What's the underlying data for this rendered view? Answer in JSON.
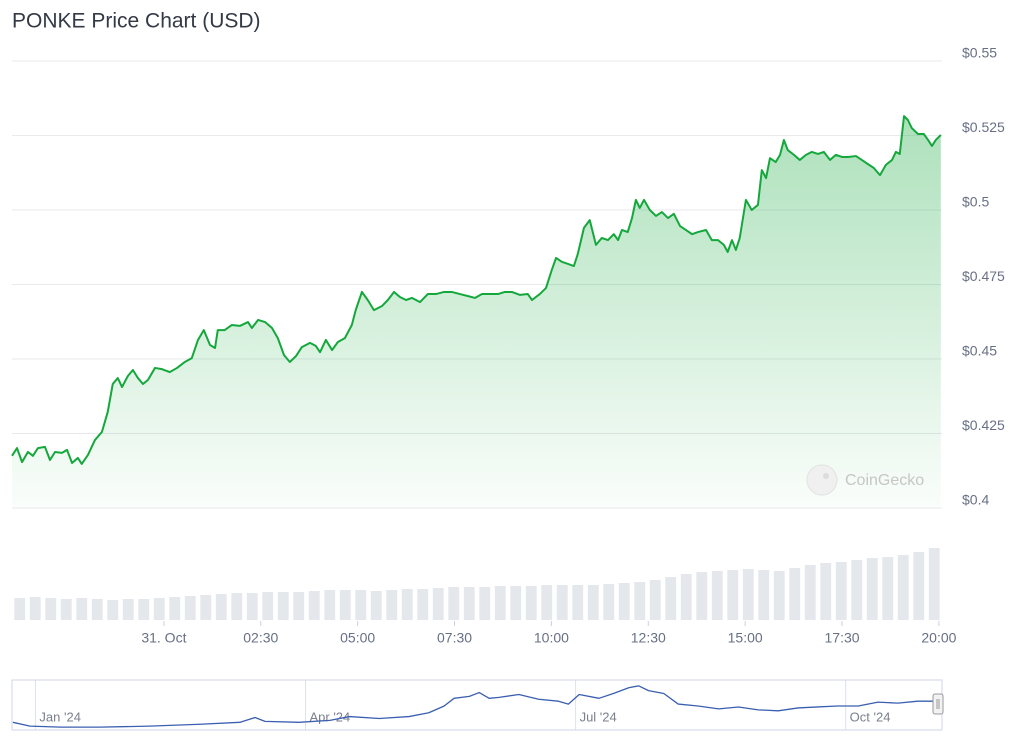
{
  "title": "PONKE Price Chart (USD)",
  "watermark": "CoinGecko",
  "chart_data": [
    {
      "type": "line",
      "area": true,
      "color": "#14a83c",
      "grid": true,
      "xlim": [
        -3.92,
        20.08
      ],
      "ylim": [
        0.4,
        0.55
      ],
      "xticks": [
        {
          "value": 0,
          "label": "31. Oct"
        },
        {
          "value": 2.5,
          "label": "02:30"
        },
        {
          "value": 5,
          "label": "05:00"
        },
        {
          "value": 7.5,
          "label": "07:30"
        },
        {
          "value": 10,
          "label": "10:00"
        },
        {
          "value": 12.5,
          "label": "12:30"
        },
        {
          "value": 15,
          "label": "15:00"
        },
        {
          "value": 17.5,
          "label": "17:30"
        },
        {
          "value": 20,
          "label": "20:00"
        }
      ],
      "yticks": [
        {
          "value": 0.4,
          "label": "$0.4"
        },
        {
          "value": 0.425,
          "label": "$0.425"
        },
        {
          "value": 0.45,
          "label": "$0.45"
        },
        {
          "value": 0.475,
          "label": "$0.475"
        },
        {
          "value": 0.5,
          "label": "$0.5"
        },
        {
          "value": 0.525,
          "label": "$0.525"
        },
        {
          "value": 0.55,
          "label": "$0.55"
        }
      ],
      "x": [
        -3.92,
        -3.79,
        -3.66,
        -3.51,
        -3.38,
        -3.25,
        -3.07,
        -2.94,
        -2.81,
        -2.63,
        -2.5,
        -2.37,
        -2.22,
        -2.12,
        -1.96,
        -1.78,
        -1.6,
        -1.45,
        -1.32,
        -1.19,
        -1.08,
        -0.93,
        -0.8,
        -0.67,
        -0.54,
        -0.41,
        -0.23,
        -0.05,
        0.15,
        0.34,
        0.54,
        0.72,
        0.88,
        1.03,
        1.19,
        1.32,
        1.39,
        1.57,
        1.75,
        1.96,
        2.17,
        2.27,
        2.43,
        2.61,
        2.79,
        2.94,
        3.1,
        3.25,
        3.41,
        3.56,
        3.77,
        3.92,
        4.03,
        4.18,
        4.34,
        4.49,
        4.67,
        4.85,
        4.95,
        5.11,
        5.26,
        5.42,
        5.63,
        5.78,
        5.94,
        6.09,
        6.25,
        6.4,
        6.61,
        6.81,
        7.02,
        7.23,
        7.43,
        7.64,
        7.85,
        8.03,
        8.21,
        8.41,
        8.62,
        8.8,
        8.98,
        9.19,
        9.39,
        9.5,
        9.7,
        9.86,
        10.01,
        10.12,
        10.27,
        10.43,
        10.58,
        10.68,
        10.84,
        10.99,
        11.15,
        11.3,
        11.46,
        11.61,
        11.72,
        11.82,
        11.97,
        12.08,
        12.18,
        12.28,
        12.39,
        12.54,
        12.7,
        12.85,
        13.01,
        13.16,
        13.32,
        13.47,
        13.63,
        13.78,
        13.99,
        14.14,
        14.3,
        14.45,
        14.55,
        14.66,
        14.76,
        14.86,
        15.02,
        15.17,
        15.33,
        15.43,
        15.54,
        15.64,
        15.79,
        15.9,
        16.0,
        16.1,
        16.26,
        16.41,
        16.57,
        16.72,
        16.88,
        17.03,
        17.19,
        17.34,
        17.5,
        17.65,
        17.86,
        18.01,
        18.17,
        18.32,
        18.48,
        18.63,
        18.79,
        18.89,
        18.99,
        19.1,
        19.2,
        19.3,
        19.46,
        19.61,
        19.72,
        19.82,
        19.92,
        20.05
      ],
      "values": [
        0.4175,
        0.4201,
        0.4154,
        0.4188,
        0.4175,
        0.4201,
        0.4205,
        0.4161,
        0.4188,
        0.4185,
        0.4195,
        0.4151,
        0.4168,
        0.4148,
        0.4178,
        0.4228,
        0.4255,
        0.4322,
        0.4416,
        0.4436,
        0.4406,
        0.4443,
        0.4463,
        0.4436,
        0.4416,
        0.443,
        0.447,
        0.4466,
        0.4456,
        0.447,
        0.449,
        0.4503,
        0.4564,
        0.4597,
        0.4547,
        0.4537,
        0.4597,
        0.4597,
        0.4614,
        0.4611,
        0.4624,
        0.4604,
        0.4631,
        0.4624,
        0.4604,
        0.457,
        0.4513,
        0.449,
        0.451,
        0.454,
        0.4554,
        0.4544,
        0.4523,
        0.4564,
        0.453,
        0.4557,
        0.457,
        0.4614,
        0.4664,
        0.4725,
        0.4698,
        0.4664,
        0.4678,
        0.4698,
        0.4725,
        0.4708,
        0.4698,
        0.4705,
        0.4691,
        0.4718,
        0.4718,
        0.4725,
        0.4725,
        0.4718,
        0.4711,
        0.4705,
        0.4718,
        0.4718,
        0.4718,
        0.4725,
        0.4725,
        0.4715,
        0.4718,
        0.4698,
        0.4718,
        0.4738,
        0.4799,
        0.4839,
        0.4826,
        0.4819,
        0.4812,
        0.4852,
        0.494,
        0.4966,
        0.4883,
        0.4906,
        0.4899,
        0.4919,
        0.4899,
        0.4933,
        0.4926,
        0.4973,
        0.5034,
        0.5007,
        0.5034,
        0.5,
        0.498,
        0.4993,
        0.4973,
        0.4987,
        0.4946,
        0.4933,
        0.4919,
        0.4926,
        0.4933,
        0.4899,
        0.4899,
        0.4883,
        0.4859,
        0.4899,
        0.4866,
        0.4906,
        0.5034,
        0.5,
        0.5017,
        0.5134,
        0.5107,
        0.5174,
        0.5161,
        0.5185,
        0.5235,
        0.5201,
        0.5185,
        0.5168,
        0.5185,
        0.5195,
        0.5188,
        0.5195,
        0.5168,
        0.5185,
        0.5178,
        0.5178,
        0.5181,
        0.5168,
        0.5154,
        0.5141,
        0.5117,
        0.5151,
        0.5168,
        0.5195,
        0.5188,
        0.5315,
        0.5302,
        0.5275,
        0.5255,
        0.5255,
        0.5235,
        0.5215,
        0.5235,
        0.5252
      ]
    },
    {
      "type": "bar",
      "color": "#e4e7eb",
      "ylim": [
        0,
        100
      ],
      "values": [
        22,
        23,
        22,
        21,
        22,
        21,
        20,
        21,
        21,
        22,
        23,
        24,
        25,
        26,
        27,
        27,
        28,
        28,
        28,
        29,
        30,
        30,
        30,
        29,
        30,
        31,
        31,
        32,
        33,
        33,
        33,
        34,
        34,
        34,
        35,
        35,
        35,
        35,
        36,
        37,
        38,
        40,
        43,
        46,
        48,
        49,
        50,
        51,
        50,
        49,
        52,
        55,
        57,
        58,
        60,
        62,
        63,
        65,
        68,
        72
      ]
    },
    {
      "type": "line",
      "color": "#3a5fb0",
      "xlim": [
        -0.26,
        10.07
      ],
      "ylim": [
        0,
        50
      ],
      "xticks": [
        {
          "value": 0,
          "label": "Jan '24"
        },
        {
          "value": 3,
          "label": "Apr '24"
        },
        {
          "value": 6,
          "label": "Jul '24"
        },
        {
          "value": 9,
          "label": "Oct '24"
        }
      ],
      "x": [
        -0.25,
        -0.06,
        0.28,
        0.72,
        1.27,
        1.83,
        2.27,
        2.44,
        2.55,
        2.93,
        3.27,
        3.49,
        3.82,
        4.15,
        4.37,
        4.54,
        4.65,
        4.82,
        4.93,
        5.04,
        5.15,
        5.37,
        5.59,
        5.81,
        5.92,
        6.04,
        6.26,
        6.42,
        6.59,
        6.7,
        6.81,
        6.98,
        7.14,
        7.36,
        7.59,
        7.81,
        8.03,
        8.25,
        8.47,
        8.69,
        8.91,
        9.14,
        9.36,
        9.58,
        9.8,
        10.02
      ],
      "values": [
        8,
        4,
        3,
        3,
        4,
        6,
        8,
        13,
        9,
        8,
        10,
        14,
        12,
        14,
        18,
        25,
        33,
        35,
        39,
        33,
        34,
        37,
        32,
        30,
        27,
        37,
        33,
        38,
        44,
        46,
        41,
        38,
        27,
        25,
        22,
        24,
        21,
        20,
        23,
        24,
        25,
        25,
        29,
        28,
        30,
        30
      ]
    }
  ]
}
